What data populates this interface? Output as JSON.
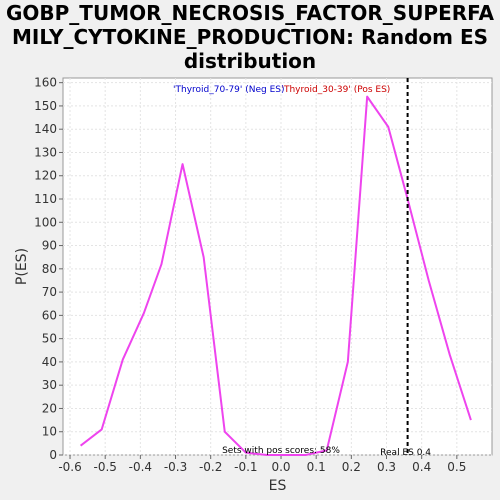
{
  "title_line1": "GOBP_TUMOR_NECROSIS_FACTOR_SUPERFA",
  "title_line2": "MILY_CYTOKINE_PRODUCTION: Random ES",
  "title_line3": "distribution",
  "colors": {
    "background": "#f0f0f0",
    "plot_background": "#ffffff",
    "series": "#ee44ee",
    "neg_legend": "#0000cc",
    "pos_legend": "#cc0000",
    "real_es_line": "#000000"
  },
  "chart_data": {
    "type": "line",
    "xlabel": "ES",
    "ylabel": "P(ES)",
    "xlim": [
      -0.62,
      0.6
    ],
    "ylim": [
      0,
      162
    ],
    "xticks": [
      -0.6,
      -0.5,
      -0.4,
      -0.3,
      -0.2,
      -0.1,
      0.0,
      0.1,
      0.2,
      0.3,
      0.4,
      0.5
    ],
    "xtick_labels": [
      "-0.6",
      "-0.5",
      "-0.4",
      "-0.3",
      "-0.2",
      "-0.1",
      "0.0",
      "0.1",
      "0.2",
      "0.3",
      "0.4",
      "0.5"
    ],
    "yticks": [
      0,
      10,
      20,
      30,
      40,
      50,
      60,
      70,
      80,
      90,
      100,
      110,
      120,
      130,
      140,
      150,
      160
    ],
    "ytick_labels": [
      "0",
      "10",
      "20",
      "30",
      "40",
      "50",
      "60",
      "70",
      "80",
      "90",
      "100",
      "110",
      "120",
      "130",
      "140",
      "150",
      "160"
    ],
    "grid": true,
    "series": [
      {
        "x": [
          -0.57,
          -0.51,
          -0.45,
          -0.39,
          -0.34,
          -0.28,
          -0.22,
          -0.16,
          -0.1,
          -0.04,
          0.01,
          0.07,
          0.13,
          0.19,
          0.245,
          0.305,
          0.36,
          0.42,
          0.48,
          0.54
        ],
        "y": [
          4,
          11,
          41,
          61,
          82,
          125,
          85,
          10,
          1,
          0,
          0,
          0,
          2,
          40,
          154,
          141,
          110,
          75,
          43,
          15
        ]
      }
    ],
    "legend": {
      "placement": "top-center",
      "neg_label": "'Thyroid_70-79' (Neg ES)",
      "pos_label": "'Thyroid_30-39' (Pos ES)"
    },
    "annotations": {
      "pos_scores": "Sets with pos scores: 58%",
      "real_es": "Real ES 0.4",
      "real_es_x": 0.36
    }
  }
}
